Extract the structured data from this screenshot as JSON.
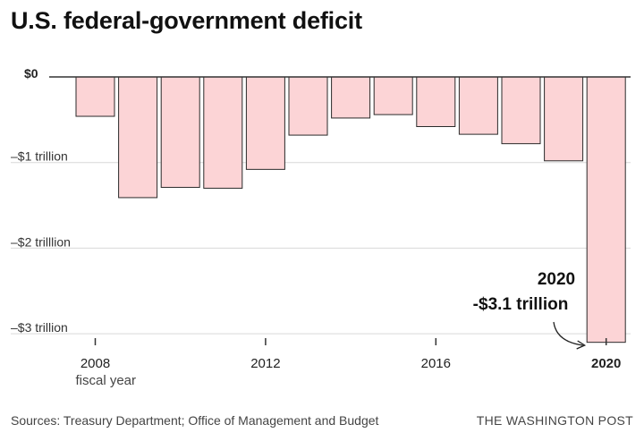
{
  "title": "U.S. federal-government deficit",
  "footer": {
    "sources": "Sources: Treasury Department; Office of Management and Budget",
    "credit": "THE WASHINGTON POST"
  },
  "chart_data": {
    "type": "bar",
    "title": "U.S. federal-government deficit",
    "xlabel": "fiscal year",
    "ylabel": "",
    "categories": [
      "2008",
      "2009",
      "2010",
      "2011",
      "2012",
      "2013",
      "2014",
      "2015",
      "2016",
      "2017",
      "2018",
      "2019",
      "2020"
    ],
    "values": [
      -0.46,
      -1.41,
      -1.29,
      -1.3,
      -1.08,
      -0.68,
      -0.48,
      -0.44,
      -0.58,
      -0.67,
      -0.78,
      -0.98,
      -3.1
    ],
    "ylim": [
      -3.0,
      0
    ],
    "y_ticks": [
      {
        "value": 0,
        "label": "$0"
      },
      {
        "value": -1,
        "label": "–$1 trillion"
      },
      {
        "value": -2,
        "label": "–$2 trilllion"
      },
      {
        "value": -3,
        "label": "–$3 trillion"
      }
    ],
    "x_ticks": [
      {
        "category": "2008",
        "label": "2008",
        "sublabel": "fiscal year",
        "bold": false
      },
      {
        "category": "2012",
        "label": "2012",
        "bold": false
      },
      {
        "category": "2016",
        "label": "2016",
        "bold": false
      },
      {
        "category": "2020",
        "label": "2020",
        "bold": true
      }
    ],
    "annotation": {
      "category": "2020",
      "line1": "2020",
      "line2": "-$3.1 trillion"
    },
    "colors": {
      "bar_fill": "#fcd4d6",
      "bar_stroke": "#2a2a2a",
      "gridline": "#d9d9d9",
      "zero_line": "#333333"
    }
  }
}
